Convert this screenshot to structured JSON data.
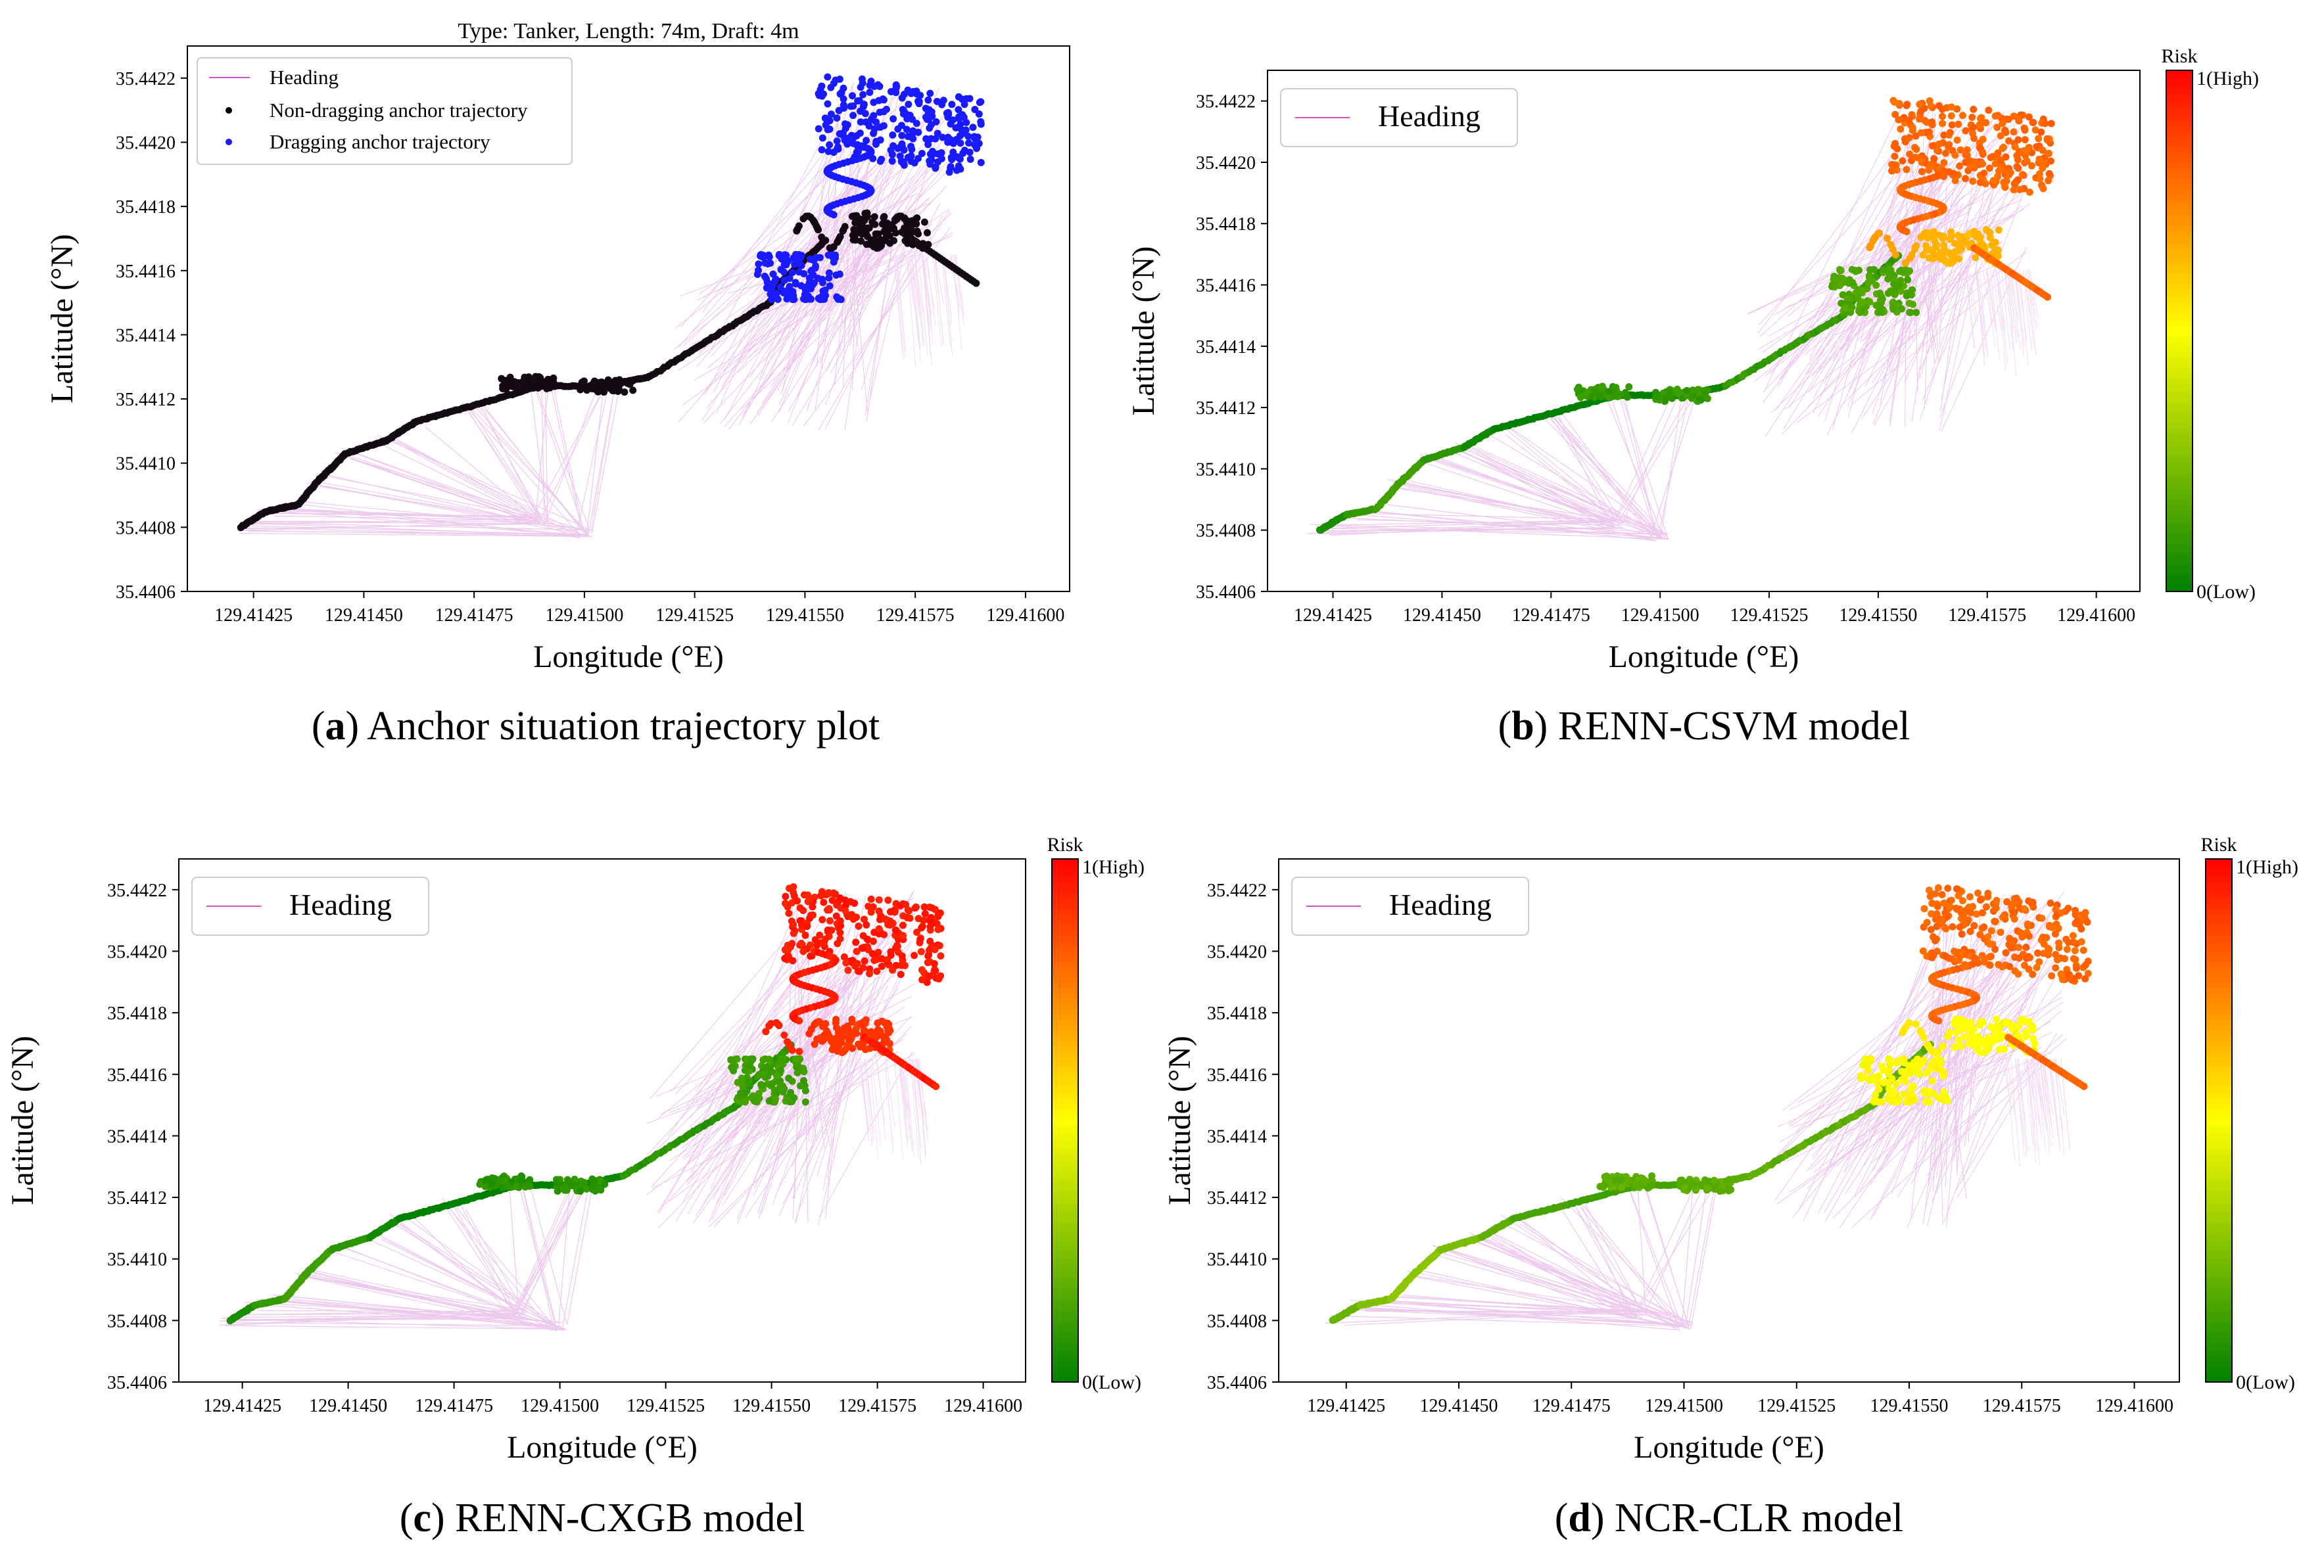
{
  "figure": {
    "panels": [
      {
        "id": "a",
        "caption_letter": "a",
        "caption_text": "Anchor situation trajectory plot",
        "title": "Type: Tanker, Length: 74m, Draft: 4m",
        "legend": [
          "Heading",
          "Non-dragging anchor trajectory",
          "Dragging anchor trajectory"
        ],
        "colorbar": null
      },
      {
        "id": "b",
        "caption_letter": "b",
        "caption_text": "RENN-CSVM model",
        "title": "",
        "legend": [
          "Heading"
        ],
        "colorbar": {
          "title": "Risk",
          "high": "1(High)",
          "low": "0(Low)"
        }
      },
      {
        "id": "c",
        "caption_letter": "c",
        "caption_text": "RENN-CXGB model",
        "title": "",
        "legend": [
          "Heading"
        ],
        "colorbar": {
          "title": "Risk",
          "high": "1(High)",
          "low": "0(Low)"
        }
      },
      {
        "id": "d",
        "caption_letter": "d",
        "caption_text": "NCR-CLR model",
        "title": "",
        "legend": [
          "Heading"
        ],
        "colorbar": {
          "title": "Risk",
          "high": "1(High)",
          "low": "0(Low)"
        }
      }
    ]
  },
  "chart_data": [
    {
      "type": "scatter",
      "panel": "a",
      "title": "Type: Tanker, Length: 74m, Draft: 4m",
      "xlabel": "Longitude (°E)",
      "ylabel": "Latitude (°N)",
      "xlim": [
        129.4141,
        129.4161
      ],
      "ylim": [
        35.4406,
        35.4423
      ],
      "xticks": [
        "129.41425",
        "129.41450",
        "129.41475",
        "129.41500",
        "129.41525",
        "129.41550",
        "129.41575",
        "129.41600"
      ],
      "yticks": [
        "35.4406",
        "35.4408",
        "35.4410",
        "35.4412",
        "35.4414",
        "35.4416",
        "35.4418",
        "35.4420",
        "35.4422"
      ],
      "series": [
        {
          "name": "Heading",
          "color": "#cc55cc"
        },
        {
          "name": "Non-dragging anchor trajectory",
          "color": "#000000"
        },
        {
          "name": "Dragging anchor trajectory",
          "color": "#0000ff"
        }
      ]
    },
    {
      "type": "scatter",
      "panel": "b",
      "title": "",
      "xlabel": "Longitude (°E)",
      "ylabel": "Latitude (°N)",
      "xlim": [
        129.4141,
        129.4161
      ],
      "ylim": [
        35.4406,
        35.4423
      ],
      "risk": {
        "start": 0.05,
        "mid_cluster": 0.1,
        "transition": 0.7,
        "lower_cluster": 0.15,
        "upper": 0.8,
        "tail": 0.8
      },
      "series": [
        {
          "name": "Heading",
          "color": "#cc55cc"
        }
      ]
    },
    {
      "type": "scatter",
      "panel": "c",
      "title": "",
      "xlabel": "Longitude (°E)",
      "ylabel": "Latitude (°N)",
      "xlim": [
        129.4141,
        129.4161
      ],
      "ylim": [
        35.4406,
        35.4423
      ],
      "risk": {
        "start": 0.05,
        "mid_cluster": 0.08,
        "transition": 0.95,
        "lower_cluster": 0.12,
        "upper": 0.95,
        "tail": 0.95
      },
      "series": [
        {
          "name": "Heading",
          "color": "#cc55cc"
        }
      ]
    },
    {
      "type": "scatter",
      "panel": "d",
      "title": "",
      "xlabel": "Longitude (°E)",
      "ylabel": "Latitude (°N)",
      "xlim": [
        129.4141,
        129.4161
      ],
      "ylim": [
        35.4406,
        35.4423
      ],
      "risk": {
        "start": 0.2,
        "mid_cluster": 0.18,
        "transition": 0.55,
        "lower_cluster": 0.5,
        "upper": 0.8,
        "tail": 0.8
      },
      "series": [
        {
          "name": "Heading",
          "color": "#cc55cc"
        }
      ]
    }
  ]
}
